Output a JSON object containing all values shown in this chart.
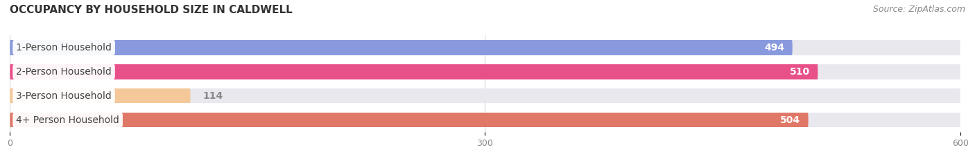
{
  "title": "OCCUPANCY BY HOUSEHOLD SIZE IN CALDWELL",
  "source": "Source: ZipAtlas.com",
  "categories": [
    "1-Person Household",
    "2-Person Household",
    "3-Person Household",
    "4+ Person Household"
  ],
  "values": [
    494,
    510,
    114,
    504
  ],
  "bar_colors": [
    "#8899dd",
    "#e8508a",
    "#f5c89a",
    "#e07868"
  ],
  "bg_track_color": "#e8e8ee",
  "xlim": [
    0,
    600
  ],
  "xticks": [
    0,
    300,
    600
  ],
  "title_fontsize": 11,
  "source_fontsize": 9,
  "bar_label_fontsize": 10,
  "category_fontsize": 10,
  "bar_height": 0.62,
  "background_color": "#ffffff",
  "grid_color": "#cccccc"
}
